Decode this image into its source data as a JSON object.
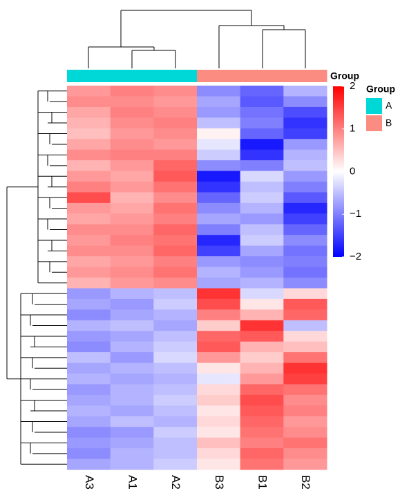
{
  "chart_data": {
    "type": "heatmap",
    "columns": [
      "A3",
      "A1",
      "A2",
      "B3",
      "B1",
      "B2"
    ],
    "column_groups": [
      "A",
      "A",
      "A",
      "B",
      "B",
      "B"
    ],
    "annotation_label": "Group",
    "legend": {
      "title": "Group",
      "items": [
        {
          "name": "A",
          "color": "#00D7D7"
        },
        {
          "name": "B",
          "color": "#FA8C82"
        }
      ]
    },
    "colors": {
      "low": "#0000FF",
      "mid": "#FFFFFF",
      "high": "#FF0000"
    },
    "zlim": [
      -2,
      2
    ],
    "zticks": [
      {
        "value": -2,
        "label": "−2"
      },
      {
        "value": -1,
        "label": "−1"
      },
      0,
      1,
      2
    ],
    "values": [
      [
        0.8,
        1.0,
        0.9,
        -0.9,
        -1.2,
        -0.6
      ],
      [
        0.9,
        0.9,
        0.8,
        -0.7,
        -1.3,
        -0.9
      ],
      [
        0.7,
        1.0,
        0.9,
        -0.8,
        -1.1,
        -1.4
      ],
      [
        0.6,
        0.9,
        1.0,
        -0.5,
        -1.0,
        -1.6
      ],
      [
        0.5,
        0.8,
        0.9,
        0.1,
        -1.2,
        -1.5
      ],
      [
        0.7,
        0.9,
        0.8,
        -0.2,
        -1.8,
        -0.8
      ],
      [
        0.9,
        1.0,
        1.0,
        -0.4,
        -1.6,
        -0.6
      ],
      [
        0.6,
        0.8,
        1.2,
        -0.9,
        -1.0,
        -0.5
      ],
      [
        0.8,
        0.7,
        1.3,
        -1.8,
        -0.3,
        -0.8
      ],
      [
        1.0,
        0.8,
        1.1,
        -1.6,
        -0.5,
        -1.0
      ],
      [
        1.4,
        0.6,
        0.9,
        -1.2,
        -0.4,
        -1.3
      ],
      [
        0.8,
        0.7,
        1.1,
        -0.9,
        -0.6,
        -1.7
      ],
      [
        0.7,
        0.8,
        1.0,
        -0.7,
        -0.8,
        -1.5
      ],
      [
        0.9,
        0.9,
        1.2,
        -1.0,
        -0.5,
        -1.2
      ],
      [
        0.8,
        1.0,
        1.1,
        -1.7,
        -0.4,
        -0.9
      ],
      [
        0.9,
        0.9,
        1.2,
        -1.5,
        -0.7,
        -1.1
      ],
      [
        0.7,
        0.8,
        1.0,
        -0.8,
        -0.9,
        -1.0
      ],
      [
        0.8,
        0.9,
        1.1,
        -0.6,
        -0.8,
        -1.1
      ],
      [
        0.6,
        0.8,
        0.9,
        -0.7,
        -0.6,
        -0.9
      ],
      [
        -0.8,
        -0.6,
        -0.5,
        1.6,
        -0.3,
        0.3
      ],
      [
        -0.7,
        -0.8,
        -0.4,
        1.4,
        0.2,
        1.3
      ],
      [
        -0.9,
        -0.7,
        -0.6,
        1.0,
        0.6,
        1.2
      ],
      [
        -0.6,
        -0.5,
        -0.7,
        0.4,
        1.6,
        -0.5
      ],
      [
        -0.8,
        -0.7,
        -0.5,
        1.2,
        1.3,
        0.3
      ],
      [
        -0.9,
        -0.6,
        -0.4,
        1.3,
        0.6,
        0.5
      ],
      [
        -0.5,
        -0.8,
        -0.3,
        0.8,
        0.4,
        1.1
      ],
      [
        -0.7,
        -0.6,
        -0.5,
        0.2,
        0.6,
        1.6
      ],
      [
        -0.6,
        -0.7,
        -0.6,
        -0.2,
        0.8,
        1.5
      ],
      [
        -0.8,
        -0.6,
        -0.5,
        0.3,
        1.2,
        1.1
      ],
      [
        -0.7,
        -0.6,
        -0.4,
        0.4,
        1.4,
        0.9
      ],
      [
        -0.6,
        -0.7,
        -0.5,
        0.2,
        1.3,
        1.0
      ],
      [
        -0.7,
        -0.5,
        -0.6,
        0.3,
        1.2,
        0.8
      ],
      [
        -0.9,
        -0.8,
        -0.4,
        0.2,
        1.1,
        0.9
      ],
      [
        -0.8,
        -0.7,
        -0.5,
        0.5,
        1.0,
        1.1
      ],
      [
        -0.9,
        -0.6,
        -0.5,
        0.3,
        1.2,
        0.9
      ],
      [
        -0.7,
        -0.6,
        -0.4,
        0.2,
        1.1,
        0.8
      ]
    ]
  }
}
